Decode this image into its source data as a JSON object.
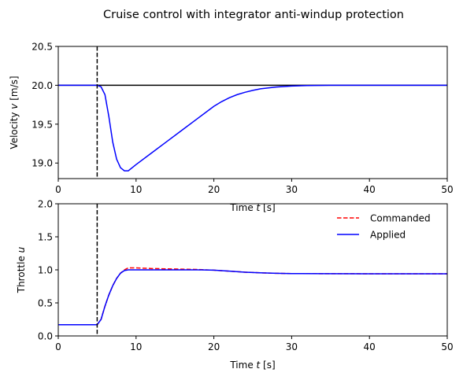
{
  "chart_data": [
    {
      "type": "line",
      "title": "Cruise control with integrator anti-windup protection",
      "xlabel": "Time t [s]",
      "ylabel": "Velocity v [m/s]",
      "xlim": [
        0,
        50
      ],
      "ylim": [
        18.8,
        20.5
      ],
      "xticks": [
        "0",
        "10",
        "20",
        "30",
        "40",
        "50"
      ],
      "yticks": [
        "19.0",
        "19.5",
        "20.0",
        "20.5"
      ],
      "ytick_values": [
        19.0,
        19.5,
        20.0,
        20.5
      ],
      "xtick_values": [
        0,
        10,
        20,
        30,
        40,
        50
      ],
      "grid": false,
      "reference_line": {
        "y": 20.0,
        "color": "#000000"
      },
      "vertical_marker": {
        "x": 5.0,
        "color": "#000000",
        "style": "dashed"
      },
      "series": [
        {
          "color": "#0000ff",
          "style": "solid",
          "x": [
            0,
            5,
            5.5,
            6,
            6.5,
            7,
            7.5,
            8,
            8.5,
            9,
            10,
            12,
            14,
            16,
            18,
            20,
            21,
            22,
            23,
            24,
            25,
            26,
            28,
            30,
            32,
            35,
            40,
            45,
            50
          ],
          "y": [
            20.0,
            20.0,
            19.98,
            19.88,
            19.6,
            19.27,
            19.05,
            18.94,
            18.9,
            18.9,
            18.98,
            19.13,
            19.28,
            19.43,
            19.58,
            19.73,
            19.79,
            19.84,
            19.88,
            19.91,
            19.935,
            19.955,
            19.978,
            19.99,
            19.997,
            20.0,
            20.0,
            20.0,
            20.0
          ]
        }
      ]
    },
    {
      "type": "line",
      "xlabel": "Time t [s]",
      "ylabel": "Throttle u",
      "xlim": [
        0,
        50
      ],
      "ylim": [
        0,
        2.0
      ],
      "xticks": [
        "0",
        "10",
        "20",
        "30",
        "40",
        "50"
      ],
      "yticks": [
        "0.0",
        "0.5",
        "1.0",
        "1.5",
        "2.0"
      ],
      "ytick_values": [
        0,
        0.5,
        1.0,
        1.5,
        2.0
      ],
      "xtick_values": [
        0,
        10,
        20,
        30,
        40,
        50
      ],
      "grid": false,
      "legend": "top-right",
      "vertical_marker": {
        "x": 5.0,
        "color": "#000000",
        "style": "dashed"
      },
      "series": [
        {
          "name": "Commanded",
          "color": "#ff0000",
          "style": "dashed",
          "x": [
            0,
            5,
            5.5,
            6,
            6.5,
            7,
            7.5,
            8,
            8.5,
            9,
            9.5,
            10,
            12,
            14,
            16,
            18,
            20,
            22,
            24,
            26,
            28,
            30,
            35,
            40,
            45,
            50
          ],
          "y": [
            0.17,
            0.17,
            0.25,
            0.45,
            0.62,
            0.76,
            0.87,
            0.95,
            1.0,
            1.03,
            1.03,
            1.03,
            1.02,
            1.015,
            1.01,
            1.005,
            0.995,
            0.98,
            0.965,
            0.955,
            0.948,
            0.944,
            0.942,
            0.941,
            0.941,
            0.941
          ]
        },
        {
          "name": "Applied",
          "color": "#0000ff",
          "style": "solid",
          "x": [
            0,
            5,
            5.5,
            6,
            6.5,
            7,
            7.5,
            8,
            8.5,
            9,
            9.5,
            10,
            12,
            14,
            16,
            18,
            20,
            22,
            24,
            26,
            28,
            30,
            35,
            40,
            45,
            50
          ],
          "y": [
            0.17,
            0.17,
            0.25,
            0.45,
            0.62,
            0.76,
            0.87,
            0.95,
            0.99,
            1.0,
            1.0,
            1.0,
            1.0,
            1.0,
            1.0,
            1.0,
            0.995,
            0.98,
            0.965,
            0.955,
            0.948,
            0.944,
            0.942,
            0.941,
            0.941,
            0.941
          ]
        }
      ]
    }
  ]
}
